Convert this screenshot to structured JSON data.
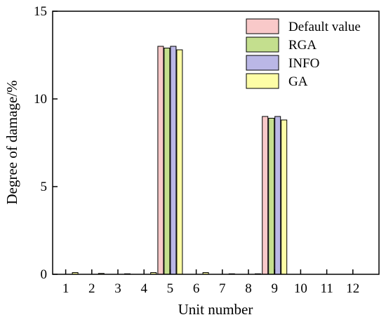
{
  "chart_data": {
    "type": "bar",
    "xlabel": "Unit number",
    "ylabel": "Degree of damage/%",
    "ylim": [
      0,
      15
    ],
    "yticks": [
      0,
      5,
      10,
      15
    ],
    "legend_position": "top-right",
    "grid": false,
    "categories": [
      "1",
      "2",
      "3",
      "4",
      "5",
      "6",
      "7",
      "8",
      "9",
      "10",
      "11",
      "12"
    ],
    "series": [
      {
        "name": "Default value",
        "color": "#f9c9c9",
        "values": [
          0,
          0,
          0,
          0,
          13.0,
          0,
          0,
          0,
          9.0,
          0,
          0,
          0
        ]
      },
      {
        "name": "RGA",
        "color": "#c4df8e",
        "values": [
          0,
          0,
          0,
          0,
          12.9,
          0,
          0,
          0,
          8.9,
          0,
          0,
          0
        ]
      },
      {
        "name": "INFO",
        "color": "#bab7e6",
        "values": [
          0,
          0,
          0,
          0,
          13.0,
          0,
          0,
          0,
          9.0,
          0,
          0,
          0
        ]
      },
      {
        "name": "GA",
        "color": "#fdfda6",
        "values": [
          0.1,
          0.05,
          0.03,
          0.1,
          12.8,
          0.1,
          0.03,
          0.03,
          8.8,
          0,
          0,
          0
        ]
      }
    ]
  }
}
